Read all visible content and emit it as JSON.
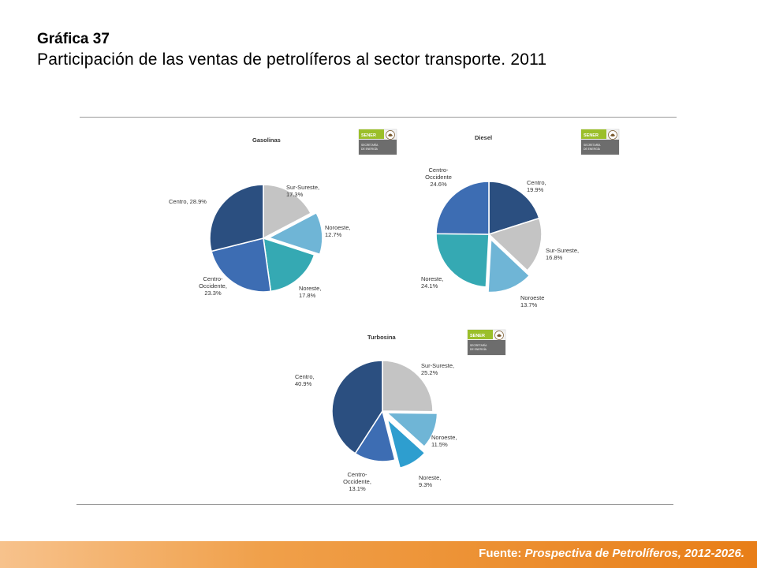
{
  "slide": {
    "title": "Gráfica 37",
    "subtitle": "Participación de las ventas de petrolíferos al sector transporte. 2011",
    "source_label": "Fuente:",
    "source_text": "Prospectiva de Petrolíferos, 2012-2026."
  },
  "logo": {
    "brand": "SENER",
    "line1": "SECRETARÍA",
    "line2": "DE ENERGÍA"
  },
  "colors": {
    "centro": "#2b4f80",
    "centro_occidente": "#3d6db3",
    "noreste": "#35a9b3",
    "noroeste": "#6fb5d6",
    "sur_sureste": "#c4c4c4",
    "noreste_turbosina": "#2e9ecf",
    "footer": "#e87e17",
    "logo_green": "#9bbf2a"
  },
  "chart_data": [
    {
      "type": "pie",
      "title": "Gasolinas",
      "slices": [
        {
          "label": "Sur-Sureste",
          "value": 17.3,
          "text": "17.3%"
        },
        {
          "label": "Noroeste",
          "value": 12.7,
          "text": "12.7%"
        },
        {
          "label": "Noreste",
          "value": 17.8,
          "text": "17.8%"
        },
        {
          "label": "Centro-Occidente",
          "value": 23.3,
          "text": "23.3%"
        },
        {
          "label": "Centro",
          "value": 28.9,
          "text": "28.9%"
        }
      ]
    },
    {
      "type": "pie",
      "title": "Diesel",
      "slices": [
        {
          "label": "Centro",
          "value": 19.9,
          "text": "19.9%"
        },
        {
          "label": "Sur-Sureste",
          "value": 16.8,
          "text": "16.8%"
        },
        {
          "label": "Noroeste",
          "value": 13.7,
          "text": "13.7%"
        },
        {
          "label": "Noreste",
          "value": 24.1,
          "text": "24.1%"
        },
        {
          "label": "Centro-Occidente",
          "value": 24.6,
          "text": "24.6%"
        }
      ]
    },
    {
      "type": "pie",
      "title": "Turbosina",
      "slices": [
        {
          "label": "Sur-Sureste",
          "value": 25.2,
          "text": "25.2%"
        },
        {
          "label": "Noroeste",
          "value": 11.5,
          "text": "11.5%"
        },
        {
          "label": "Noreste",
          "value": 9.3,
          "text": "9.3%"
        },
        {
          "label": "Centro-Occidente",
          "value": 13.1,
          "text": "13.1%"
        },
        {
          "label": "Centro",
          "value": 40.9,
          "text": "40.9%"
        }
      ]
    }
  ]
}
